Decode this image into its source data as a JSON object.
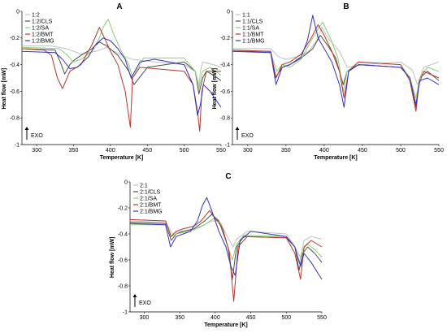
{
  "chart_data": [
    {
      "type": "line",
      "panel_label": "A",
      "xlabel": "Temperature [K]",
      "ylabel": "Heat flow [mW]",
      "xlim": [
        280,
        550
      ],
      "ylim": [
        -1,
        0
      ],
      "xticks": [
        300,
        350,
        400,
        450,
        500,
        550
      ],
      "yticks": [
        -1,
        -0.8,
        -0.6,
        -0.4,
        -0.2,
        0
      ],
      "legend_position": "top-left",
      "annotation": "EXO",
      "series": [
        {
          "name": "1:2",
          "color": "#c0c0c0",
          "x": [
            280,
            320,
            340,
            350,
            360,
            380,
            395,
            405,
            420,
            430,
            460,
            500,
            515,
            520,
            522,
            525,
            540,
            550
          ],
          "y": [
            -0.26,
            -0.26,
            -0.28,
            -0.3,
            -0.32,
            -0.3,
            -0.27,
            -0.3,
            -0.34,
            -0.36,
            -0.38,
            -0.4,
            -0.45,
            -0.55,
            -0.45,
            -0.38,
            -0.4,
            -0.42
          ]
        },
        {
          "name": "1:2/CLS",
          "color": "#4d4d4d",
          "x": [
            280,
            325,
            332,
            338,
            345,
            350,
            360,
            375,
            385,
            395,
            410,
            425,
            432,
            450,
            500,
            515,
            520,
            525,
            530,
            540,
            550
          ],
          "y": [
            -0.28,
            -0.29,
            -0.38,
            -0.47,
            -0.4,
            -0.37,
            -0.33,
            -0.28,
            -0.23,
            -0.26,
            -0.33,
            -0.45,
            -0.55,
            -0.42,
            -0.38,
            -0.45,
            -0.62,
            -0.5,
            -0.45,
            -0.48,
            -0.52
          ]
        },
        {
          "name": "1:2/SA",
          "color": "#8ccf6a",
          "x": [
            280,
            330,
            340,
            350,
            360,
            375,
            385,
            390,
            397,
            405,
            415,
            425,
            430,
            445,
            500,
            515,
            520,
            525,
            535,
            550
          ],
          "y": [
            -0.27,
            -0.28,
            -0.32,
            -0.38,
            -0.36,
            -0.3,
            -0.2,
            -0.12,
            -0.06,
            -0.18,
            -0.3,
            -0.4,
            -0.5,
            -0.35,
            -0.35,
            -0.45,
            -0.58,
            -0.45,
            -0.42,
            -0.48
          ]
        },
        {
          "name": "1:2/BMT",
          "color": "#b5372a",
          "x": [
            280,
            310,
            320,
            328,
            335,
            345,
            360,
            375,
            385,
            392,
            400,
            410,
            420,
            427,
            430,
            440,
            500,
            512,
            518,
            521,
            524,
            530,
            550
          ],
          "y": [
            -0.28,
            -0.29,
            -0.33,
            -0.5,
            -0.58,
            -0.45,
            -0.4,
            -0.25,
            -0.12,
            -0.2,
            -0.3,
            -0.4,
            -0.6,
            -0.87,
            -0.5,
            -0.42,
            -0.45,
            -0.55,
            -0.75,
            -0.9,
            -0.6,
            -0.45,
            -0.45
          ]
        },
        {
          "name": "1:2/BMG",
          "color": "#3333c8",
          "x": [
            280,
            325,
            335,
            345,
            355,
            370,
            380,
            390,
            400,
            410,
            420,
            428,
            440,
            460,
            500,
            512,
            518,
            522,
            526,
            535,
            550
          ],
          "y": [
            -0.3,
            -0.31,
            -0.36,
            -0.43,
            -0.42,
            -0.34,
            -0.25,
            -0.2,
            -0.22,
            -0.28,
            -0.36,
            -0.5,
            -0.38,
            -0.36,
            -0.4,
            -0.55,
            -0.78,
            -0.7,
            -0.55,
            -0.6,
            -0.72
          ]
        }
      ]
    },
    {
      "type": "line",
      "panel_label": "B",
      "xlabel": "Temperature [K]",
      "ylabel": "Heat flow [mW]",
      "xlim": [
        280,
        550
      ],
      "ylim": [
        -1,
        0
      ],
      "xticks": [
        300,
        350,
        400,
        450,
        500,
        550
      ],
      "yticks": [
        -1,
        -0.8,
        -0.6,
        -0.4,
        -0.2,
        0
      ],
      "legend_position": "top-left",
      "annotation": "EXO",
      "series": [
        {
          "name": "1:1",
          "color": "#c0c0c0",
          "x": [
            280,
            330,
            340,
            350,
            365,
            380,
            390,
            397,
            405,
            420,
            430,
            450,
            500,
            515,
            522,
            530,
            550
          ],
          "y": [
            -0.28,
            -0.28,
            -0.34,
            -0.36,
            -0.34,
            -0.3,
            -0.22,
            -0.12,
            -0.2,
            -0.3,
            -0.42,
            -0.4,
            -0.38,
            -0.44,
            -0.55,
            -0.42,
            -0.38
          ]
        },
        {
          "name": "1:1/CLS",
          "color": "#4d4d4d",
          "x": [
            280,
            330,
            336,
            345,
            355,
            370,
            385,
            395,
            405,
            415,
            425,
            430,
            445,
            500,
            512,
            520,
            525,
            535,
            550
          ],
          "y": [
            -0.3,
            -0.3,
            -0.5,
            -0.42,
            -0.4,
            -0.35,
            -0.28,
            -0.18,
            -0.26,
            -0.35,
            -0.55,
            -0.45,
            -0.4,
            -0.42,
            -0.5,
            -0.72,
            -0.5,
            -0.45,
            -0.52
          ]
        },
        {
          "name": "1:1/SA",
          "color": "#8ccf6a",
          "x": [
            280,
            330,
            338,
            345,
            355,
            370,
            380,
            390,
            398,
            408,
            418,
            425,
            430,
            445,
            500,
            512,
            520,
            525,
            535,
            550
          ],
          "y": [
            -0.3,
            -0.31,
            -0.45,
            -0.4,
            -0.42,
            -0.36,
            -0.25,
            -0.15,
            -0.08,
            -0.2,
            -0.35,
            -0.6,
            -0.45,
            -0.38,
            -0.4,
            -0.5,
            -0.65,
            -0.5,
            -0.42,
            -0.45
          ]
        },
        {
          "name": "1:1/BMT",
          "color": "#b5372a",
          "x": [
            280,
            330,
            337,
            345,
            355,
            370,
            383,
            392,
            400,
            410,
            420,
            426,
            432,
            445,
            500,
            512,
            520,
            524,
            530,
            550
          ],
          "y": [
            -0.29,
            -0.3,
            -0.5,
            -0.4,
            -0.38,
            -0.32,
            -0.2,
            -0.1,
            -0.18,
            -0.3,
            -0.45,
            -0.65,
            -0.45,
            -0.38,
            -0.4,
            -0.52,
            -0.75,
            -0.55,
            -0.45,
            -0.5
          ]
        },
        {
          "name": "1:1/BMG",
          "color": "#3333c8",
          "x": [
            280,
            330,
            337,
            345,
            355,
            370,
            378,
            385,
            392,
            400,
            410,
            420,
            426,
            432,
            445,
            500,
            512,
            520,
            525,
            535,
            550
          ],
          "y": [
            -0.3,
            -0.31,
            -0.55,
            -0.42,
            -0.4,
            -0.34,
            -0.22,
            -0.03,
            -0.2,
            -0.28,
            -0.38,
            -0.55,
            -0.72,
            -0.45,
            -0.4,
            -0.42,
            -0.5,
            -0.7,
            -0.52,
            -0.5,
            -0.55
          ]
        }
      ]
    },
    {
      "type": "line",
      "panel_label": "C",
      "xlabel": "Temperature [K]",
      "ylabel": "Heat flow [mW]",
      "xlim": [
        280,
        550
      ],
      "ylim": [
        -1,
        0
      ],
      "xticks": [
        300,
        350,
        400,
        450,
        500,
        550
      ],
      "yticks": [
        -1,
        -0.8,
        -0.6,
        -0.4,
        -0.2,
        0
      ],
      "legend_position": "top-left",
      "annotation": "EXO",
      "series": [
        {
          "name": "2:1",
          "color": "#c0c0c0",
          "x": [
            280,
            330,
            340,
            350,
            365,
            380,
            395,
            405,
            415,
            425,
            430,
            445,
            500,
            512,
            520,
            525,
            535,
            550
          ],
          "y": [
            -0.3,
            -0.31,
            -0.4,
            -0.38,
            -0.37,
            -0.34,
            -0.3,
            -0.3,
            -0.4,
            -0.5,
            -0.44,
            -0.38,
            -0.4,
            -0.5,
            -0.58,
            -0.45,
            -0.42,
            -0.44
          ]
        },
        {
          "name": "2:1/CLS",
          "color": "#4d4d4d",
          "x": [
            280,
            330,
            338,
            345,
            355,
            370,
            385,
            395,
            405,
            418,
            424,
            430,
            440,
            500,
            512,
            518,
            523,
            530,
            540,
            550
          ],
          "y": [
            -0.31,
            -0.32,
            -0.45,
            -0.4,
            -0.38,
            -0.36,
            -0.3,
            -0.25,
            -0.3,
            -0.5,
            -0.75,
            -0.5,
            -0.42,
            -0.43,
            -0.5,
            -0.68,
            -0.55,
            -0.5,
            -0.55,
            -0.62
          ]
        },
        {
          "name": "2:1/SA",
          "color": "#8ccf6a",
          "x": [
            280,
            330,
            338,
            345,
            355,
            370,
            385,
            398,
            408,
            418,
            424,
            430,
            440,
            500,
            512,
            518,
            523,
            530,
            540,
            550
          ],
          "y": [
            -0.33,
            -0.33,
            -0.42,
            -0.4,
            -0.39,
            -0.37,
            -0.33,
            -0.28,
            -0.32,
            -0.5,
            -0.6,
            -0.48,
            -0.41,
            -0.42,
            -0.5,
            -0.62,
            -0.52,
            -0.48,
            -0.52,
            -0.58
          ]
        },
        {
          "name": "2:1/BMT",
          "color": "#b5372a",
          "x": [
            280,
            330,
            338,
            345,
            355,
            370,
            380,
            392,
            400,
            410,
            420,
            426,
            432,
            445,
            500,
            512,
            520,
            525,
            535,
            550
          ],
          "y": [
            -0.29,
            -0.3,
            -0.42,
            -0.38,
            -0.36,
            -0.34,
            -0.3,
            -0.22,
            -0.28,
            -0.35,
            -0.55,
            -0.92,
            -0.5,
            -0.42,
            -0.43,
            -0.55,
            -0.75,
            -0.5,
            -0.45,
            -0.5
          ]
        },
        {
          "name": "2:1/BMG",
          "color": "#3333c8",
          "x": [
            280,
            330,
            337,
            345,
            355,
            365,
            375,
            382,
            388,
            395,
            405,
            415,
            422,
            428,
            435,
            450,
            500,
            512,
            520,
            525,
            535,
            550
          ],
          "y": [
            -0.32,
            -0.33,
            -0.5,
            -0.42,
            -0.4,
            -0.38,
            -0.3,
            -0.18,
            -0.12,
            -0.22,
            -0.38,
            -0.5,
            -0.65,
            -0.72,
            -0.45,
            -0.38,
            -0.42,
            -0.5,
            -0.65,
            -0.55,
            -0.62,
            -0.75
          ]
        }
      ]
    }
  ]
}
